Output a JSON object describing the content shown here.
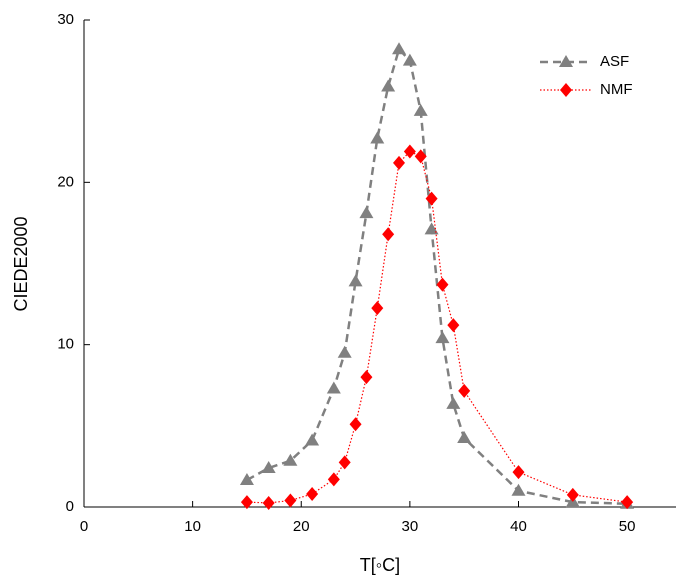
{
  "chart_data": {
    "type": "line",
    "xlabel": "T[◦C]",
    "ylabel": "CIEDE2000",
    "x": [
      15,
      17,
      19,
      21,
      23,
      24,
      25,
      26,
      27,
      28,
      29,
      30,
      31,
      32,
      33,
      34,
      35,
      40,
      45,
      50
    ],
    "series": [
      {
        "name": "ASF",
        "color": "#808080",
        "marker": "triangle",
        "dash": "8,5",
        "values": [
          1.66,
          2.4,
          2.85,
          4.1,
          7.3,
          9.5,
          13.9,
          18.1,
          22.7,
          25.9,
          28.2,
          27.5,
          24.4,
          17.1,
          10.4,
          6.35,
          4.25,
          1.0,
          0.3,
          0.2
        ]
      },
      {
        "name": "NMF",
        "color": "#ff0000",
        "marker": "diamond",
        "dash": "1.5,2",
        "values": [
          0.3,
          0.25,
          0.4,
          0.8,
          1.7,
          2.75,
          5.1,
          8.0,
          12.25,
          16.8,
          21.2,
          21.9,
          21.6,
          19.0,
          13.7,
          11.2,
          7.15,
          2.15,
          0.75,
          0.3
        ]
      }
    ],
    "xlim": [
      0,
      54.5
    ],
    "xticks": [
      0,
      10,
      20,
      30,
      40,
      50
    ],
    "ylim": [
      0,
      30
    ],
    "yticks": [
      0,
      10,
      20,
      30
    ],
    "legend": "top-right"
  }
}
